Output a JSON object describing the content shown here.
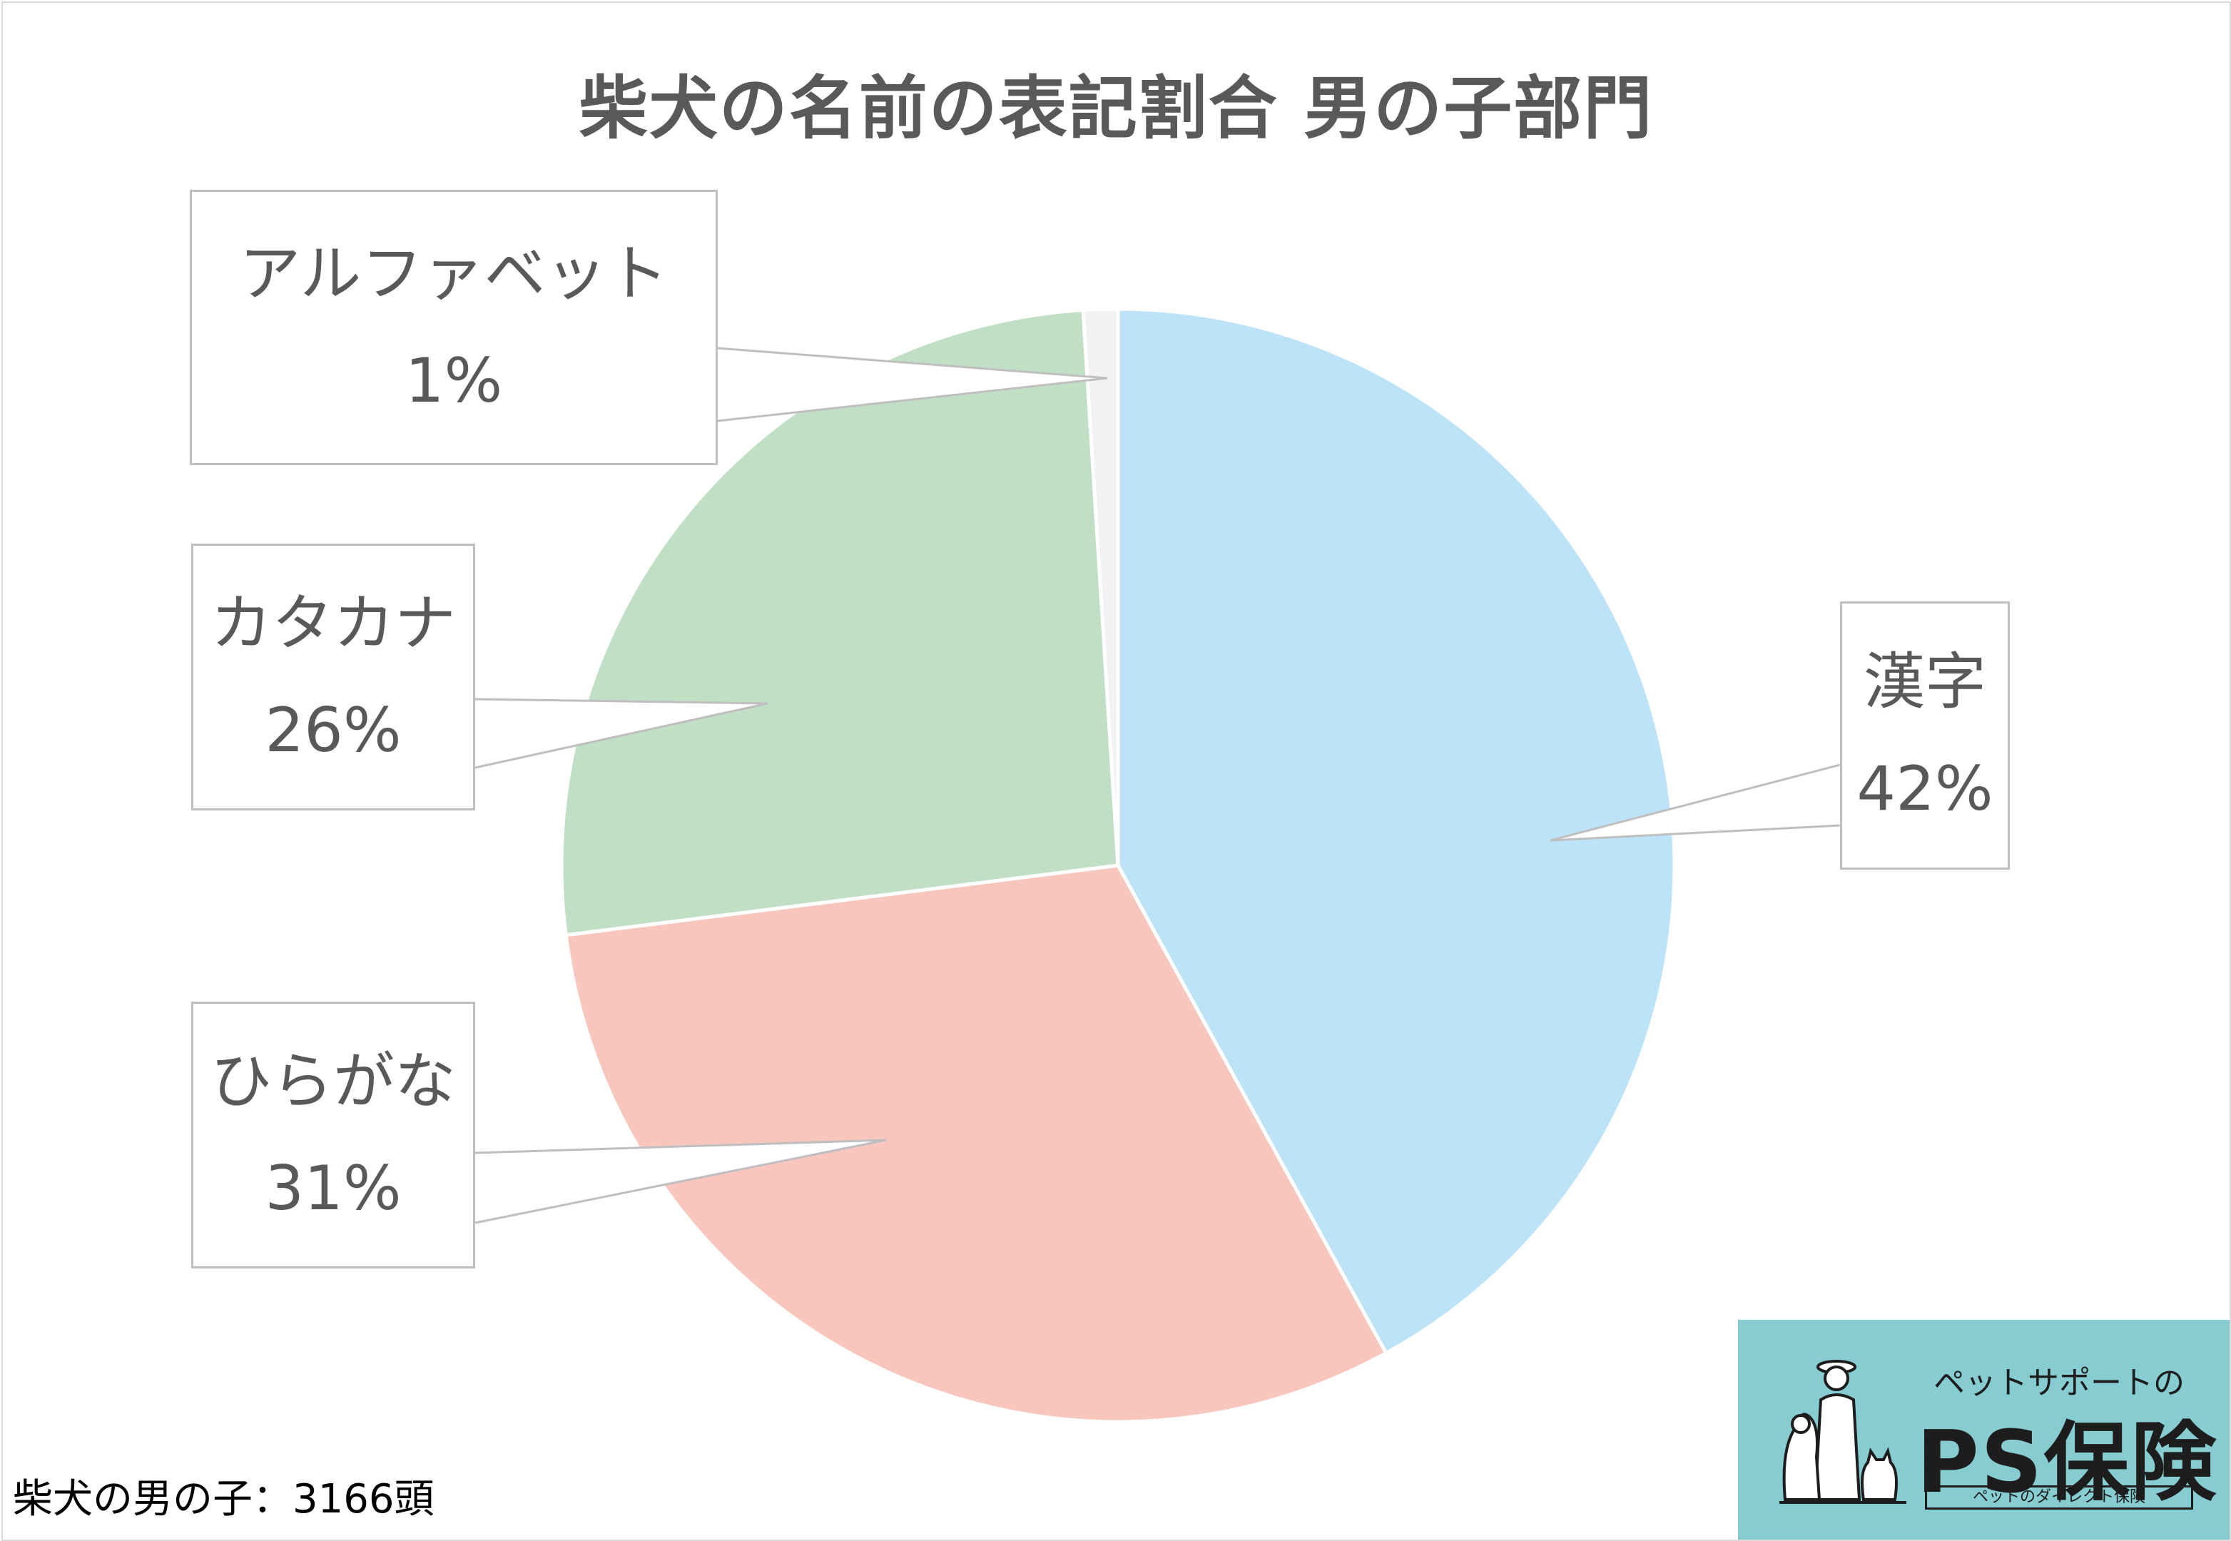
{
  "chart_data": {
    "type": "pie",
    "title": "柴犬の名前の表記割合 男の子部門",
    "start_angle_deg": 0,
    "direction": "clockwise",
    "series": [
      {
        "name": "漢字",
        "value": 42,
        "label": "42%",
        "color": "#bde3f9"
      },
      {
        "name": "ひらがな",
        "value": 31,
        "label": "31%",
        "color": "#f8c6bd"
      },
      {
        "name": "カタカナ",
        "value": 26,
        "label": "26%",
        "color": "#c1dfc4"
      },
      {
        "name": "アルファベット",
        "value": 1,
        "label": "1%",
        "color": "#f2f2f2"
      }
    ],
    "legend": "none",
    "slice_border_color": "#ffffff",
    "callout_border_color": "#bfbfbf",
    "text_color": "#595959"
  },
  "footnote": "柴犬の男の子：3166頭",
  "logo": {
    "tagline": "ペットサポートの",
    "brand": "PS保険",
    "subtitle": "ペットのダイレクト保険",
    "background": "#86ccd1"
  }
}
